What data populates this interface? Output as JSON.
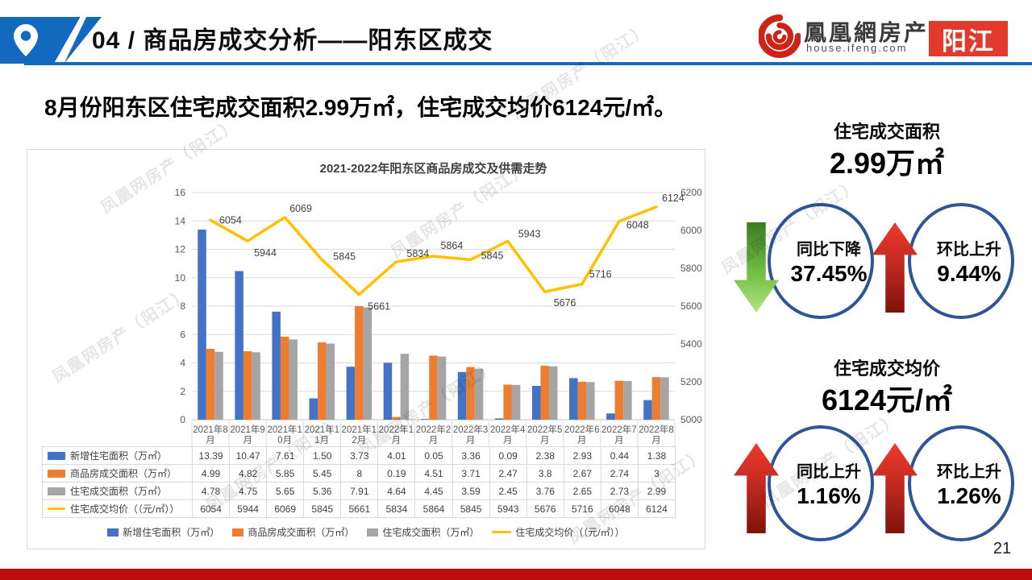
{
  "header": {
    "title": "04 / 商品房成交分析——阳东区成交",
    "logo": {
      "brand": "鳳凰網房产",
      "domain": "house.ifeng.com",
      "city_badge": "阳江"
    }
  },
  "subtitle": "8月份阳东区住宅成交面积2.99万㎡，住宅成交均价6124元/㎡。",
  "watermark_text": "凤凰网房产（阳江）",
  "page_number": "21",
  "chart_data": {
    "type": "combo bar+line",
    "title": "2021-2022年阳东区商品房成交及供需走势",
    "categories": [
      "2021年8月",
      "2021年9月",
      "2021年10月",
      "2021年11月",
      "2021年12月",
      "2022年1月",
      "2022年2月",
      "2022年3月",
      "2022年4月",
      "2022年5月",
      "2022年6月",
      "2022年7月",
      "2022年8月"
    ],
    "categories_wrapped": [
      [
        "2021年8",
        "月"
      ],
      [
        "2021年9",
        "月"
      ],
      [
        "2021年1",
        "0月"
      ],
      [
        "2021年1",
        "1月"
      ],
      [
        "2021年1",
        "2月"
      ],
      [
        "2022年1",
        "月"
      ],
      [
        "2022年2",
        "月"
      ],
      [
        "2022年3",
        "月"
      ],
      [
        "2022年4",
        "月"
      ],
      [
        "2022年5",
        "月"
      ],
      [
        "2022年6",
        "月"
      ],
      [
        "2022年7",
        "月"
      ],
      [
        "2022年8",
        "月"
      ]
    ],
    "series": [
      {
        "name": "新增住宅面积（万㎡）",
        "type": "bar",
        "axis": "left",
        "color": "#4472C4",
        "values": [
          "13.39",
          "10.47",
          "7.61",
          "1.50",
          "3.73",
          "4.01",
          "0.05",
          "3.36",
          "0.09",
          "2.38",
          "2.93",
          "0.44",
          "1.38"
        ]
      },
      {
        "name": "商品房成交面积（万㎡）",
        "type": "bar",
        "axis": "left",
        "color": "#ED7D31",
        "values": [
          "4.99",
          "4.82",
          "5.85",
          "5.45",
          "8",
          "0.19",
          "4.51",
          "3.71",
          "2.47",
          "3.8",
          "2.67",
          "2.74",
          "3"
        ]
      },
      {
        "name": "住宅成交面积（万㎡）",
        "type": "bar",
        "axis": "left",
        "color": "#A5A5A5",
        "values": [
          "4.78",
          "4.75",
          "5.65",
          "5.36",
          "7.91",
          "4.64",
          "4.45",
          "3.59",
          "2.45",
          "3.76",
          "2.65",
          "2.73",
          "2.99"
        ]
      },
      {
        "name": "住宅成交均价（（元/㎡））",
        "type": "line",
        "axis": "right",
        "color": "#FFC000",
        "values": [
          "6054",
          "5944",
          "6069",
          "5845",
          "5661",
          "5834",
          "5864",
          "5845",
          "5943",
          "5676",
          "5716",
          "6048",
          "6124"
        ]
      }
    ],
    "left_axis": {
      "min": 0,
      "max": 16,
      "step": 2
    },
    "right_axis": {
      "min": 5000,
      "max": 6200,
      "step": 200
    },
    "grid": true,
    "legend_position": "bottom",
    "show_data_table": true
  },
  "kpis": [
    {
      "title": "住宅成交面积",
      "value": "2.99万㎡",
      "items": [
        {
          "label": "同比下降",
          "value": "37.45%",
          "direction": "down",
          "arrow_color": "green"
        },
        {
          "label": "环比上升",
          "value": "9.44%",
          "direction": "up",
          "arrow_color": "red"
        }
      ]
    },
    {
      "title": "住宅成交均价",
      "value": "6124元/㎡",
      "items": [
        {
          "label": "同比上升",
          "value": "1.16%",
          "direction": "up",
          "arrow_color": "red"
        },
        {
          "label": "环比上升",
          "value": "1.26%",
          "direction": "up",
          "arrow_color": "red"
        }
      ]
    }
  ],
  "colors": {
    "header_blue": "#1269BD",
    "badge_red": "#E23B2E",
    "footer_red": "#BE0E10",
    "bar_blue": "#4472C4",
    "bar_orange": "#ED7D31",
    "bar_gray": "#A5A5A5",
    "line_yellow": "#FFC000",
    "circle_border": "#2F5597"
  }
}
